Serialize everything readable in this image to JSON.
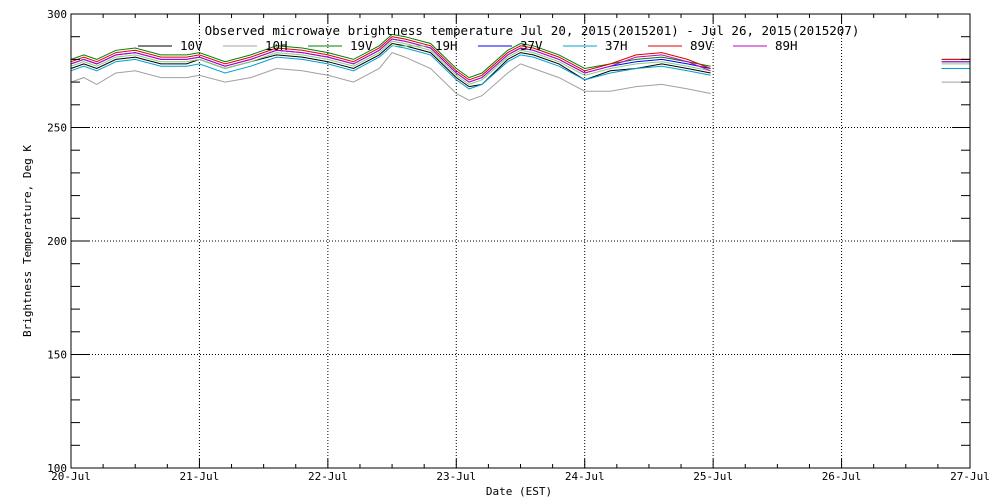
{
  "chart_data": {
    "type": "line",
    "title": "Observed microwave brightness temperature Jul 20, 2015(2015201) - Jul 26, 2015(2015207)",
    "xlabel": "Date (EST)",
    "ylabel": "Brightness Temperature, Deg K",
    "xlim": [
      "20-Jul",
      "27-Jul"
    ],
    "ylim": [
      100,
      300
    ],
    "x_ticks": [
      "20-Jul",
      "21-Jul",
      "22-Jul",
      "23-Jul",
      "24-Jul",
      "25-Jul",
      "26-Jul",
      "27-Jul"
    ],
    "y_ticks": [
      100,
      150,
      200,
      250,
      300
    ],
    "grid": true,
    "legend_position": "top",
    "x_units": "days since 20-Jul",
    "series": [
      {
        "name": "10V",
        "color": "#000000",
        "x": [
          0,
          0.1,
          0.2,
          0.35,
          0.5,
          0.7,
          0.9,
          1.0,
          1.2,
          1.4,
          1.6,
          1.8,
          2.0,
          2.2,
          2.4,
          2.5,
          2.6,
          2.8,
          3.0,
          3.1,
          3.2,
          3.4,
          3.5,
          3.6,
          3.8,
          4.0,
          4.2,
          4.4,
          4.6,
          4.8,
          4.98,
          6.78,
          7.0
        ],
        "y": [
          276,
          278,
          276,
          280,
          281,
          278,
          278,
          280,
          276,
          279,
          282,
          281,
          279,
          276,
          282,
          287,
          286,
          283,
          272,
          268,
          269,
          280,
          283,
          282,
          278,
          271,
          275,
          276,
          278,
          276,
          274,
          276,
          276
        ]
      },
      {
        "name": "10H",
        "color": "#a0a0a0",
        "x": [
          0,
          0.1,
          0.2,
          0.35,
          0.5,
          0.7,
          0.9,
          1.0,
          1.2,
          1.4,
          1.6,
          1.8,
          2.0,
          2.2,
          2.4,
          2.5,
          2.6,
          2.8,
          3.0,
          3.1,
          3.2,
          3.4,
          3.5,
          3.6,
          3.8,
          4.0,
          4.2,
          4.4,
          4.6,
          4.8,
          4.98,
          6.78,
          7.0
        ],
        "y": [
          270,
          272,
          269,
          274,
          275,
          272,
          272,
          273,
          270,
          272,
          276,
          275,
          273,
          270,
          276,
          283,
          281,
          276,
          265,
          262,
          264,
          274,
          278,
          276,
          272,
          266,
          266,
          268,
          269,
          267,
          265,
          270,
          270
        ]
      },
      {
        "name": "19V",
        "color": "#008000",
        "x": [
          0,
          0.1,
          0.2,
          0.35,
          0.5,
          0.7,
          0.9,
          1.0,
          1.2,
          1.4,
          1.6,
          1.8,
          2.0,
          2.2,
          2.4,
          2.5,
          2.6,
          2.8,
          3.0,
          3.1,
          3.2,
          3.4,
          3.5,
          3.6,
          3.8,
          4.0,
          4.2,
          4.4,
          4.6,
          4.8,
          4.98,
          6.78,
          7.0
        ],
        "y": [
          280,
          282,
          280,
          284,
          285,
          282,
          282,
          283,
          279,
          282,
          286,
          285,
          283,
          280,
          286,
          291,
          290,
          287,
          276,
          272,
          274,
          284,
          287,
          286,
          282,
          276,
          278,
          280,
          281,
          279,
          277,
          280,
          280
        ]
      },
      {
        "name": "19H",
        "color": "#7fd07f",
        "x": [
          0,
          0.1,
          0.2,
          0.35,
          0.5,
          0.7,
          0.9,
          1.0,
          1.2,
          1.4,
          1.6,
          1.8,
          2.0,
          2.2,
          2.4,
          2.5,
          2.6,
          2.8,
          3.0,
          3.1,
          3.2,
          3.4,
          3.5,
          3.6,
          3.8,
          4.0,
          4.2,
          4.4,
          4.6,
          4.8,
          4.98,
          6.78,
          7.0
        ],
        "y": [
          277,
          279,
          277,
          281,
          282,
          279,
          279,
          280,
          276,
          279,
          283,
          282,
          280,
          277,
          283,
          288,
          287,
          284,
          273,
          269,
          271,
          281,
          284,
          283,
          279,
          273,
          276,
          278,
          279,
          277,
          275,
          278,
          278
        ]
      },
      {
        "name": "37V",
        "color": "#0000ff",
        "x": [
          0,
          0.1,
          0.2,
          0.35,
          0.5,
          0.7,
          0.9,
          1.0,
          1.2,
          1.4,
          1.6,
          1.8,
          2.0,
          2.2,
          2.4,
          2.5,
          2.6,
          2.8,
          3.0,
          3.1,
          3.2,
          3.4,
          3.5,
          3.6,
          3.8,
          4.0,
          4.2,
          4.4,
          4.6,
          4.8,
          4.98,
          6.78,
          7.0
        ],
        "y": [
          278,
          280,
          278,
          282,
          283,
          280,
          280,
          281,
          277,
          280,
          284,
          283,
          281,
          278,
          284,
          289,
          288,
          285,
          274,
          270,
          272,
          282,
          285,
          284,
          280,
          274,
          277,
          279,
          280,
          278,
          276,
          279,
          279
        ]
      },
      {
        "name": "37H",
        "color": "#00a0d0",
        "x": [
          0,
          0.1,
          0.2,
          0.35,
          0.5,
          0.7,
          0.9,
          1.0,
          1.2,
          1.4,
          1.6,
          1.8,
          2.0,
          2.2,
          2.4,
          2.5,
          2.6,
          2.8,
          3.0,
          3.1,
          3.2,
          3.4,
          3.5,
          3.6,
          3.8,
          4.0,
          4.2,
          4.4,
          4.6,
          4.8,
          4.98,
          6.78,
          7.0
        ],
        "y": [
          275,
          277,
          275,
          279,
          280,
          277,
          277,
          278,
          274,
          277,
          281,
          280,
          278,
          275,
          281,
          286,
          285,
          282,
          271,
          267,
          269,
          279,
          282,
          281,
          277,
          271,
          274,
          276,
          277,
          275,
          273,
          276,
          276
        ]
      },
      {
        "name": "89V",
        "color": "#e00000",
        "x": [
          0,
          0.1,
          0.2,
          0.35,
          0.5,
          0.7,
          0.9,
          1.0,
          1.2,
          1.4,
          1.6,
          1.8,
          2.0,
          2.2,
          2.4,
          2.5,
          2.6,
          2.8,
          3.0,
          3.1,
          3.2,
          3.4,
          3.5,
          3.6,
          3.8,
          4.0,
          4.2,
          4.4,
          4.6,
          4.8,
          4.98,
          6.78,
          7.0
        ],
        "y": [
          279,
          281,
          279,
          283,
          284,
          281,
          281,
          282,
          278,
          281,
          285,
          284,
          282,
          279,
          285,
          290,
          289,
          286,
          275,
          271,
          273,
          283,
          286,
          285,
          281,
          275,
          278,
          282,
          283,
          280,
          276,
          280,
          280
        ]
      },
      {
        "name": "89H",
        "color": "#c000c0",
        "x": [
          0,
          0.1,
          0.2,
          0.35,
          0.5,
          0.7,
          0.9,
          1.0,
          1.2,
          1.4,
          1.6,
          1.8,
          2.0,
          2.2,
          2.4,
          2.5,
          2.6,
          2.8,
          3.0,
          3.1,
          3.2,
          3.4,
          3.5,
          3.6,
          3.8,
          4.0,
          4.2,
          4.4,
          4.6,
          4.8,
          4.98,
          6.78,
          7.0
        ],
        "y": [
          278,
          280,
          278,
          282,
          283,
          280,
          280,
          281,
          277,
          280,
          284,
          283,
          281,
          278,
          284,
          289,
          288,
          285,
          274,
          270,
          272,
          282,
          285,
          284,
          280,
          274,
          277,
          281,
          282,
          279,
          275,
          279,
          279
        ]
      }
    ]
  }
}
